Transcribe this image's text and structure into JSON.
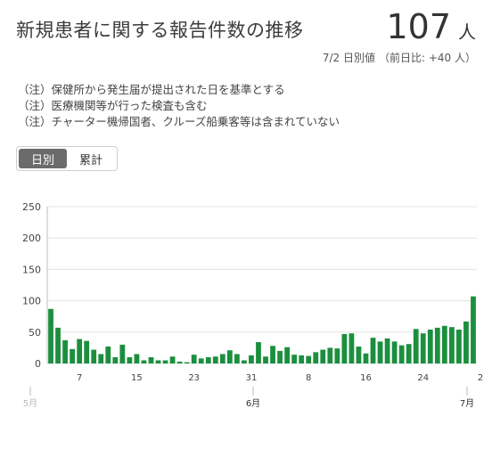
{
  "header": {
    "title": "新規患者に関する報告件数の推移",
    "total_value": "107",
    "total_unit": "人",
    "subtitle_date": "7/2 日別値",
    "subtitle_diff": "（前日比: +40 人）"
  },
  "notes": [
    "（注）保健所から発生届が提出された日を基準とする",
    "（注）医療機関等が行った検査も含む",
    "（注）チャーター機帰国者、クルーズ船乗客等は含まれていない"
  ],
  "toggle": {
    "daily_label": "日別",
    "cumulative_label": "累計"
  },
  "colors": {
    "bar": "#1b8f3e",
    "grid": "#e3e3e3",
    "axis": "#bfbfbf",
    "text": "#333333",
    "toggle_active": "#6b6b6b"
  },
  "chart_data": {
    "type": "bar",
    "ylim": [
      0,
      250
    ],
    "yticks": [
      "0",
      "50",
      "100",
      "150",
      "200",
      "250"
    ],
    "x_day_labels": [
      "7",
      "15",
      "23",
      "31",
      "8",
      "16",
      "24",
      "2"
    ],
    "x_month_labels": [
      "5月",
      "6月",
      "7月"
    ],
    "grid": true,
    "values": [
      87,
      57,
      37,
      23,
      39,
      36,
      22,
      15,
      27,
      10,
      30,
      10,
      15,
      5,
      10,
      5,
      5,
      11,
      3,
      2,
      14,
      8,
      10,
      11,
      15,
      21,
      15,
      5,
      13,
      34,
      11,
      28,
      20,
      26,
      14,
      13,
      12,
      18,
      22,
      25,
      24,
      47,
      48,
      27,
      16,
      41,
      35,
      40,
      35,
      29,
      31,
      55,
      48,
      54,
      57,
      60,
      58,
      54,
      67,
      107
    ]
  }
}
